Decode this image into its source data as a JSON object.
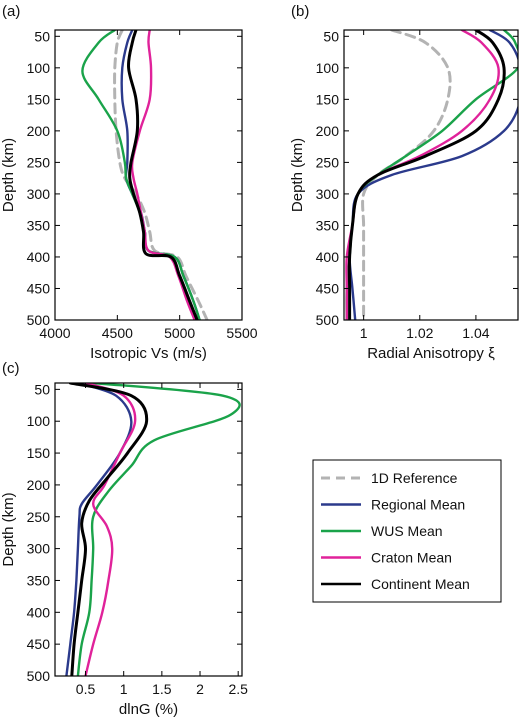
{
  "series_styles": [
    {
      "name": "1D Reference",
      "color": "#b3b3b3",
      "dash": true
    },
    {
      "name": "Regional Mean",
      "color": "#2b3a8c",
      "dash": false
    },
    {
      "name": "WUS Mean",
      "color": "#1aa34a",
      "dash": false
    },
    {
      "name": "Craton Mean",
      "color": "#e0229a",
      "dash": false
    },
    {
      "name": "Continent Mean",
      "color": "#000000",
      "dash": false
    }
  ],
  "chart_data": [
    {
      "type": "line",
      "panel_label": "(a)",
      "xlabel": "Isotropic Vs (m/s)",
      "ylabel": "Depth (km)",
      "xlim": [
        4000,
        5500
      ],
      "ylim": [
        500,
        40
      ],
      "xticks": [
        4000,
        4500,
        5000,
        5500
      ],
      "yticks": [
        50,
        100,
        150,
        200,
        250,
        300,
        350,
        400,
        450,
        500
      ],
      "series": [
        {
          "name": "1D Reference",
          "x": [
            4540,
            4500,
            4480,
            4480,
            4490,
            4520,
            4560,
            4650,
            4720,
            4760,
            4800,
            4980,
            5050,
            5150,
            5220
          ],
          "y": [
            40,
            60,
            100,
            150,
            200,
            250,
            275,
            300,
            330,
            360,
            390,
            400,
            430,
            470,
            500
          ]
        },
        {
          "name": "Regional Mean",
          "x": [
            4620,
            4580,
            4540,
            4540,
            4580,
            4580,
            4570,
            4620,
            4690,
            4720,
            4750,
            4960,
            5030,
            5110,
            5160
          ],
          "y": [
            40,
            60,
            100,
            150,
            200,
            250,
            275,
            300,
            330,
            360,
            390,
            400,
            430,
            470,
            500
          ]
        },
        {
          "name": "WUS Mean",
          "x": [
            4480,
            4350,
            4220,
            4350,
            4500,
            4560,
            4570,
            4620,
            4680,
            4720,
            4750,
            4960,
            5030,
            5110,
            5160
          ],
          "y": [
            40,
            60,
            105,
            150,
            200,
            250,
            275,
            300,
            330,
            360,
            390,
            400,
            430,
            470,
            500
          ]
        },
        {
          "name": "Craton Mean",
          "x": [
            4760,
            4750,
            4770,
            4760,
            4680,
            4620,
            4630,
            4660,
            4690,
            4720,
            4750,
            4920,
            4990,
            5060,
            5120
          ],
          "y": [
            40,
            60,
            100,
            150,
            200,
            250,
            275,
            300,
            330,
            360,
            390,
            400,
            430,
            470,
            500
          ]
        },
        {
          "name": "Continent Mean",
          "x": [
            4650,
            4620,
            4590,
            4650,
            4660,
            4610,
            4600,
            4630,
            4680,
            4710,
            4730,
            4930,
            5000,
            5080,
            5140
          ],
          "y": [
            40,
            60,
            100,
            150,
            200,
            250,
            275,
            300,
            330,
            360,
            395,
            400,
            430,
            470,
            500
          ]
        }
      ]
    },
    {
      "type": "line",
      "panel_label": "(b)",
      "xlabel": "Radial Anisotropy ξ",
      "ylabel": "Depth (km)",
      "xlim": [
        0.993,
        1.055
      ],
      "xticklabels": [
        "1",
        "1.02",
        "1.04"
      ],
      "xticks": [
        1.0,
        1.02,
        1.04
      ],
      "ylim": [
        500,
        40
      ],
      "yticks": [
        50,
        100,
        150,
        200,
        250,
        300,
        350,
        400,
        450,
        500
      ],
      "series": [
        {
          "name": "1D Reference",
          "x": [
            1.01,
            1.022,
            1.03,
            1.03,
            1.025,
            1.015,
            1.005,
            1.0,
            1.0,
            1.0,
            1.0,
            1.0
          ],
          "y": [
            40,
            60,
            100,
            150,
            200,
            240,
            270,
            300,
            350,
            400,
            450,
            500
          ]
        },
        {
          "name": "Regional Mean",
          "x": [
            1.045,
            1.052,
            1.056,
            1.056,
            1.05,
            1.035,
            1.01,
            0.998,
            0.996,
            0.995,
            0.996,
            0.997
          ],
          "y": [
            40,
            60,
            100,
            150,
            200,
            240,
            270,
            300,
            350,
            400,
            450,
            500
          ]
        },
        {
          "name": "WUS Mean",
          "x": [
            1.05,
            1.054,
            1.055,
            1.04,
            1.028,
            1.015,
            1.005,
            0.998,
            0.996,
            0.995,
            0.994,
            0.994
          ],
          "y": [
            40,
            60,
            100,
            150,
            200,
            240,
            270,
            300,
            350,
            400,
            450,
            500
          ]
        },
        {
          "name": "Craton Mean",
          "x": [
            1.035,
            1.042,
            1.048,
            1.045,
            1.035,
            1.02,
            1.005,
            0.998,
            0.996,
            0.994,
            0.994,
            0.994
          ],
          "y": [
            40,
            60,
            100,
            150,
            200,
            240,
            270,
            300,
            350,
            400,
            450,
            500
          ]
        },
        {
          "name": "Continent Mean",
          "x": [
            1.04,
            1.046,
            1.05,
            1.048,
            1.04,
            1.022,
            1.005,
            0.998,
            0.996,
            0.995,
            0.995,
            0.995
          ],
          "y": [
            40,
            60,
            100,
            150,
            200,
            240,
            270,
            300,
            350,
            400,
            450,
            500
          ]
        }
      ]
    },
    {
      "type": "line",
      "panel_label": "(c)",
      "xlabel": "dlnG (%)",
      "ylabel": "Depth (km)",
      "xlim": [
        0.1,
        2.55
      ],
      "xticks": [
        0.5,
        1,
        1.5,
        2,
        2.5
      ],
      "ylim": [
        500,
        40
      ],
      "yticks": [
        50,
        100,
        150,
        200,
        250,
        300,
        350,
        400,
        450,
        500
      ],
      "series": [
        {
          "name": "Regional Mean",
          "x": [
            0.4,
            0.9,
            1.1,
            0.95,
            0.65,
            0.45,
            0.42,
            0.4,
            0.38,
            0.35,
            0.3,
            0.25
          ],
          "y": [
            40,
            60,
            100,
            150,
            200,
            230,
            250,
            300,
            350,
            400,
            450,
            500
          ]
        },
        {
          "name": "WUS Mean",
          "x": [
            0.6,
            2.3,
            2.4,
            1.4,
            1.1,
            0.8,
            0.6,
            0.6,
            0.58,
            0.55,
            0.45,
            0.4
          ],
          "y": [
            40,
            60,
            90,
            130,
            170,
            210,
            250,
            300,
            350,
            400,
            450,
            500
          ]
        },
        {
          "name": "Craton Mean",
          "x": [
            0.5,
            1.0,
            1.15,
            0.95,
            0.75,
            0.6,
            0.78,
            0.85,
            0.8,
            0.72,
            0.6,
            0.5
          ],
          "y": [
            40,
            60,
            100,
            150,
            200,
            230,
            265,
            300,
            350,
            400,
            450,
            500
          ]
        },
        {
          "name": "Continent Mean",
          "x": [
            0.3,
            1.1,
            1.3,
            1.05,
            0.78,
            0.55,
            0.45,
            0.5,
            0.45,
            0.4,
            0.35,
            0.32
          ],
          "y": [
            40,
            60,
            100,
            150,
            190,
            225,
            260,
            300,
            350,
            400,
            450,
            500
          ]
        }
      ]
    }
  ]
}
